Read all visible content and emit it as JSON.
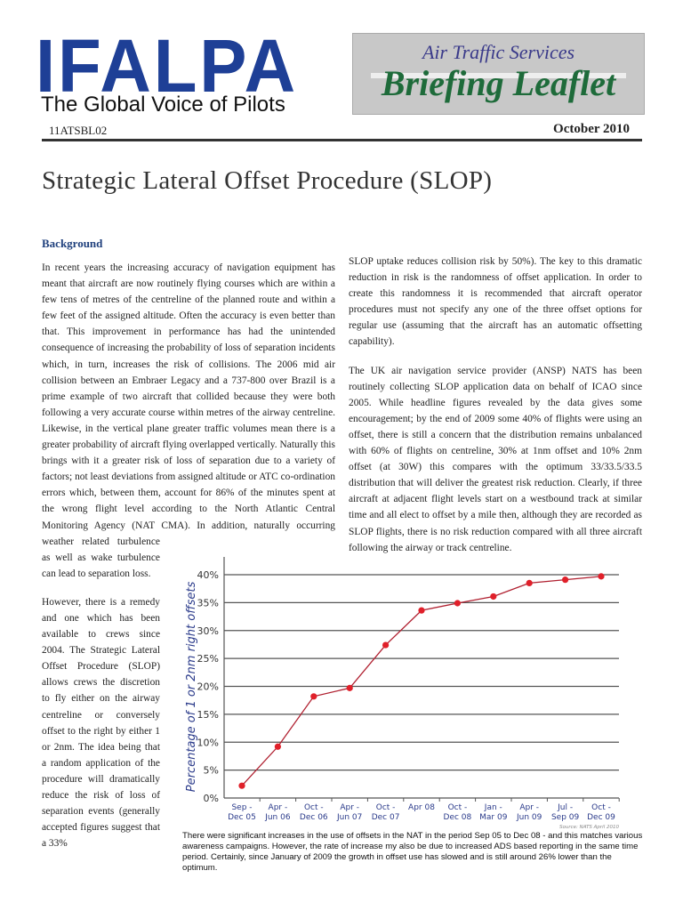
{
  "header": {
    "logo": "IFALPA",
    "tagline": "The Global Voice of Pilots",
    "banner_line1": "Air Traffic Services",
    "banner_line2": "Briefing Leaflet",
    "code": "11ATSBL02",
    "date": "October 2010"
  },
  "title": "Strategic Lateral Offset Procedure (SLOP)",
  "section_heading": "Background",
  "left_paragraphs": [
    "In recent years the increasing accuracy of navigation equipment has meant that aircraft are now routinely flying courses which are within a few tens of metres of the centreline of the planned route and within a few feet of the assigned altitude. Often the accuracy is even better than that. This improvement in performance has had the unintended consequence of increasing the probability of loss of separation incidents which, in turn, increases the risk of collisions. The 2006 mid air collision between an Embraer Legacy and a 737-800 over Brazil is a prime example of  two aircraft that collided because they were both following a very accurate course within metres of the airway centreline. Likewise, in the vertical plane greater traffic volumes mean there is a greater probability of aircraft flying overlapped vertically.  Naturally this brings with it a greater risk of loss of separation due to a variety of factors; not least deviations from assigned altitude or ATC co-ordination errors which, between them, account for 86% of the minutes spent at the wrong flight level according to the North Atlantic Central Monitoring Agency (NAT CMA). In addition, naturally occurring weather related turbulence as well as wake turbulence can lead to separation loss.",
    "However, there is a remedy and one which has been available to crews since 2004.  The Strategic Lateral Offset Procedure (SLOP) allows crews the discretion to fly either  on the airway centreline or conversely offset to the right by either 1 or 2nm. The idea being that a random application of the procedure will dramatically reduce the risk of loss of separation events (generally accepted figures suggest that a 33%"
  ],
  "right_paragraphs": [
    "SLOP uptake reduces collision risk by 50%). The key to this dramatic reduction in risk is the randomness of offset application. In order to create this randomness it is recommended that aircraft operator procedures must not specify any one of the three offset options for regular use (assuming that the aircraft has an automatic offsetting capability).",
    "The UK air navigation service provider (ANSP) NATS has been routinely collecting SLOP application data on behalf of ICAO since 2005. While headline figures revealed by the data gives some encouragement; by the end of 2009 some 40% of flights were using an offset, there is still a concern that the distribution remains unbalanced with 60% of flights on centreline, 30% at 1nm offset and 10% 2nm offset (at 30W) this compares with the optimum 33/33.5/33.5 distribution that will deliver the greatest risk reduction.  Clearly, if three aircraft at adjacent flight levels start on a westbound track at similar time and all elect to offset by a mile then, although they are recorded as SLOP flights, there is no risk reduction compared with all three aircraft following the airway or track centreline."
  ],
  "chart_data": {
    "type": "line",
    "ylabel": "Percentage of 1 or 2nm right offsets",
    "categories": [
      [
        "Sep -",
        "Dec 05"
      ],
      [
        "Apr -",
        "Jun 06"
      ],
      [
        "Oct -",
        "Dec 06"
      ],
      [
        "Apr -",
        "Jun 07"
      ],
      [
        "Oct -",
        "Dec 07"
      ],
      [
        "Apr 08",
        ""
      ],
      [
        "Oct -",
        "Dec 08"
      ],
      [
        "Jan -",
        "Mar 09"
      ],
      [
        "Apr -",
        "Jun 09"
      ],
      [
        "Jul -",
        "Sep 09"
      ],
      [
        "Oct -",
        "Dec 09"
      ]
    ],
    "values": [
      2.2,
      9.2,
      18.2,
      19.7,
      27.4,
      33.6,
      34.9,
      36.1,
      38.5,
      39.1,
      39.7
    ],
    "yticks": [
      "0%",
      "5%",
      "10%",
      "15%",
      "20%",
      "25%",
      "30%",
      "35%",
      "40%"
    ],
    "ylim": [
      0,
      40
    ],
    "grid": true,
    "source": "Source: NATS April 2010",
    "line_color": "#b02030",
    "marker_color": "#e0202a",
    "label_color": "#2a3a8a"
  },
  "caption": "There were significant increases in the use of offsets in the  NAT in the period Sep 05 to Dec 08 - and this matches various awareness campaigns. However, the rate of increase my also be due to increased ADS based reporting in the same time period. Certainly, since January of 2009 the growth in offset use has slowed and is still around 26% lower than the optimum."
}
